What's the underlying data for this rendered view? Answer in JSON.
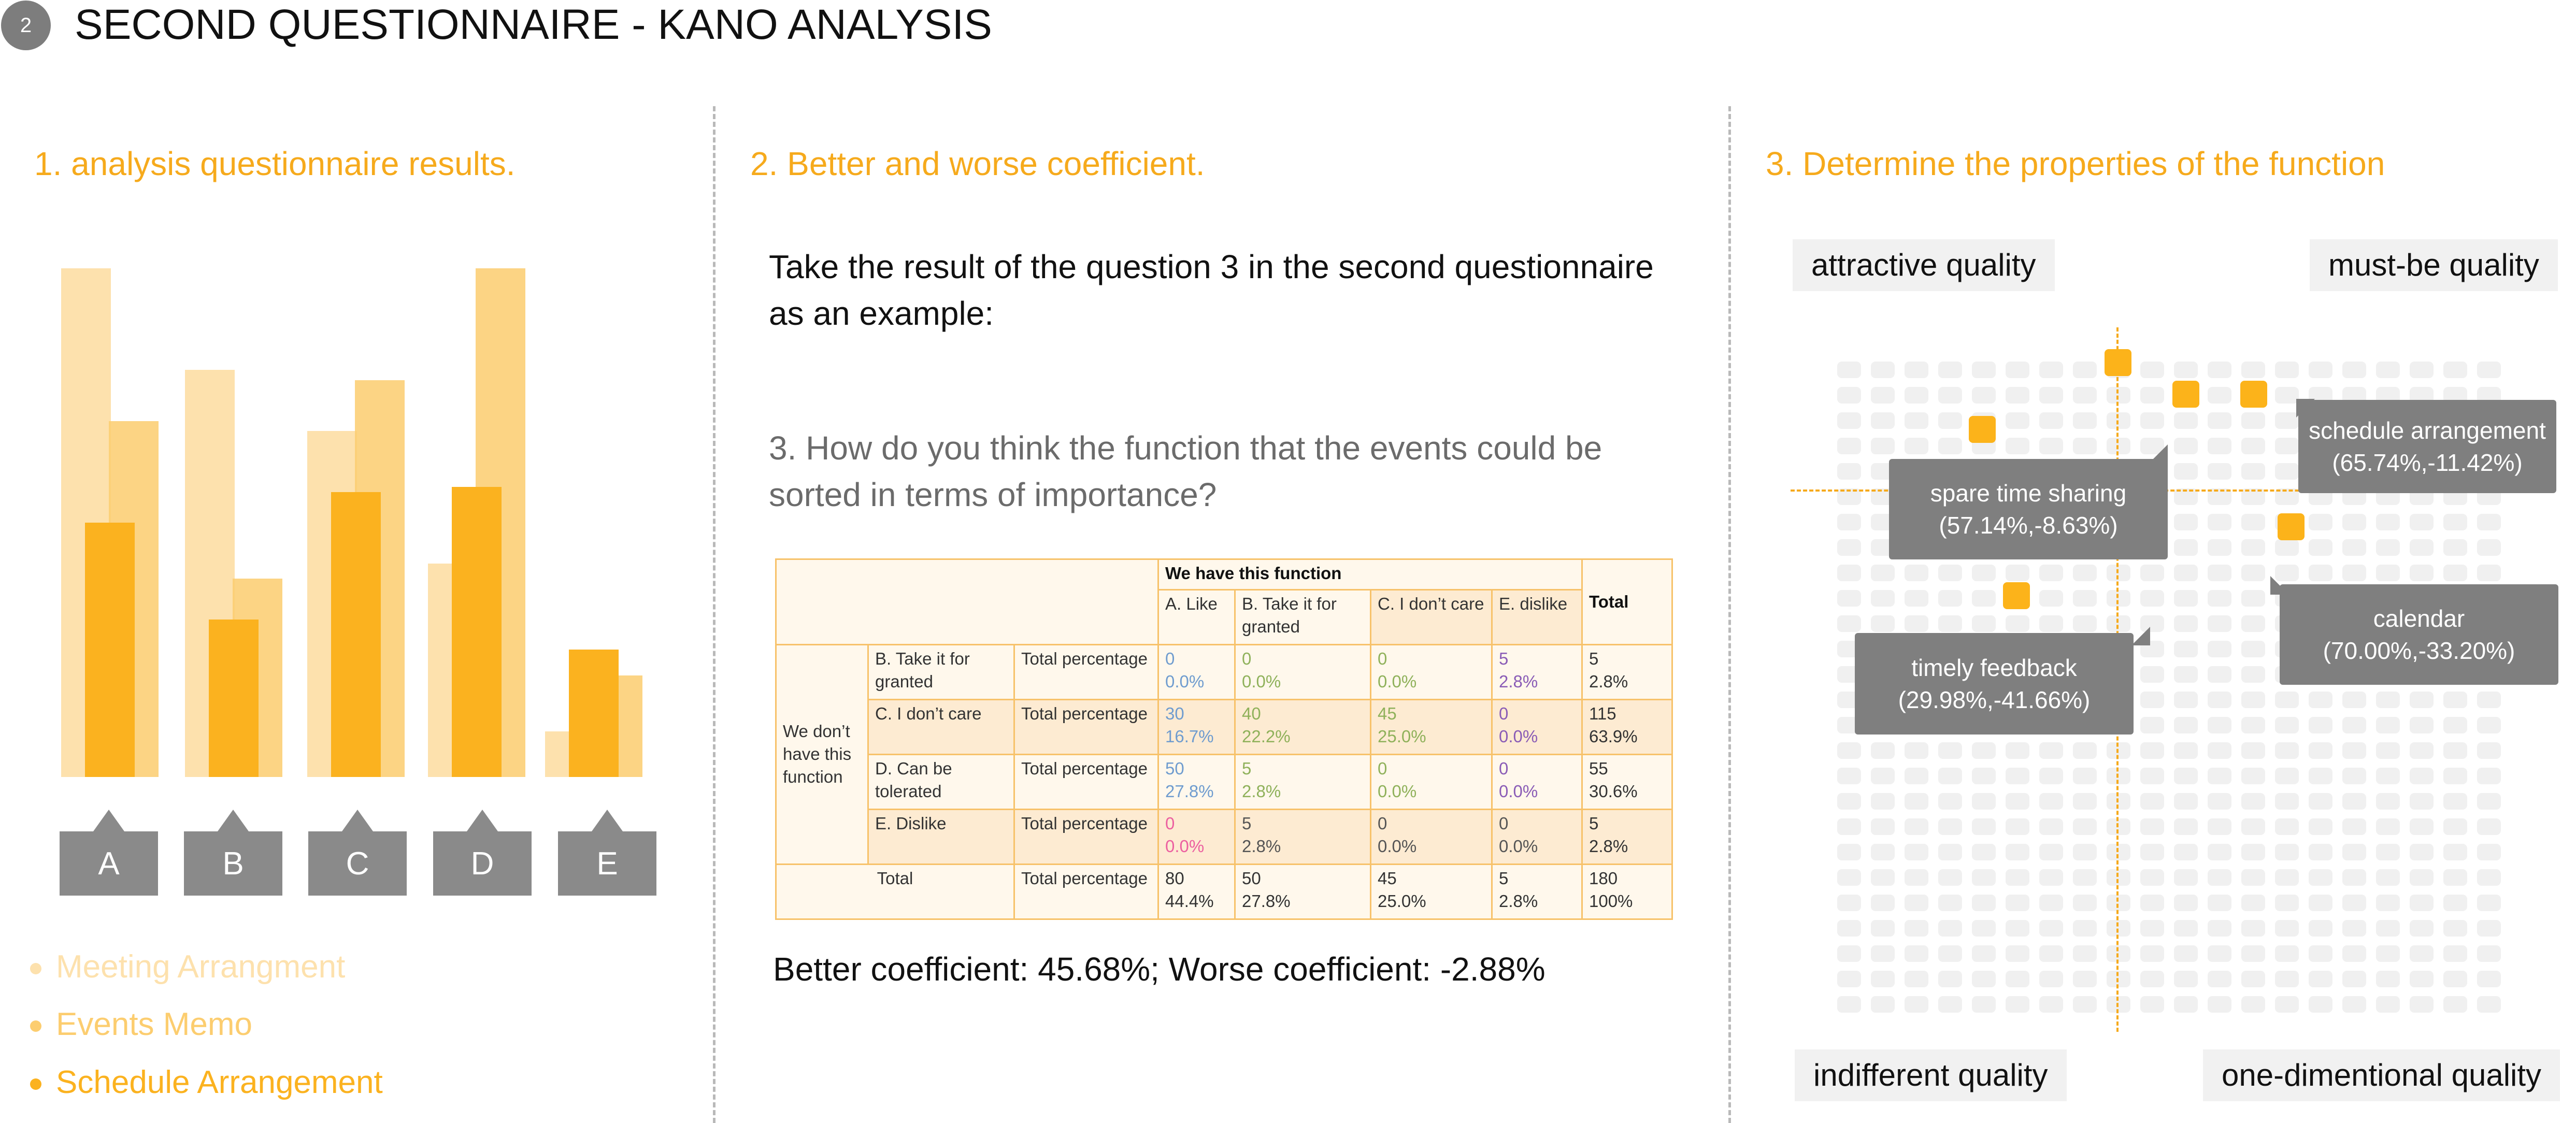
{
  "header": {
    "step": "2",
    "title": "SECOND QUESTIONNAIRE - KANO ANALYSIS"
  },
  "section1": {
    "title": "1. analysis questionnaire results.",
    "categories": [
      "A",
      "B",
      "C",
      "D",
      "E"
    ],
    "legend": [
      {
        "label": "Meeting Arrangment",
        "color": "#fde1ad"
      },
      {
        "label": "Events Memo",
        "color": "#fccd6f"
      },
      {
        "label": "Schedule Arrangement",
        "color": "#fbb21f"
      }
    ]
  },
  "section2": {
    "title": "2. Better and worse coefficient.",
    "intro": "Take the result of the question 3 in the second questionnaire as an example:",
    "question": "3. How do you think the function that the events could be sorted in terms of importance?",
    "table": {
      "have_header": "We have this function",
      "total_header": "Total",
      "col_headers": [
        "A. Like",
        "B. Take it for granted",
        "C. I don’t care",
        "E. dislike"
      ],
      "row_group": "We don’t have this function",
      "rows": [
        {
          "label": "B. Take it for granted",
          "measure": "Total percentage",
          "cells": [
            [
              "0",
              "0.0%"
            ],
            [
              "0",
              "0.0%"
            ],
            [
              "0",
              "0.0%"
            ],
            [
              "5",
              "2.8%"
            ]
          ],
          "total": [
            "5",
            "2.8%"
          ]
        },
        {
          "label": "C. I don’t care",
          "measure": "Total percentage",
          "cells": [
            [
              "30",
              "16.7%"
            ],
            [
              "40",
              "22.2%"
            ],
            [
              "45",
              "25.0%"
            ],
            [
              "0",
              "0.0%"
            ]
          ],
          "total": [
            "115",
            "63.9%"
          ]
        },
        {
          "label": "D. Can be tolerated",
          "measure": "Total percentage",
          "cells": [
            [
              "50",
              "27.8%"
            ],
            [
              "5",
              "2.8%"
            ],
            [
              "0",
              "0.0%"
            ],
            [
              "0",
              "0.0%"
            ]
          ],
          "total": [
            "55",
            "30.6%"
          ]
        },
        {
          "label": "E. Dislike",
          "measure": "Total percentage",
          "cells": [
            [
              "0",
              "0.0%"
            ],
            [
              "5",
              "2.8%"
            ],
            [
              "0",
              "0.0%"
            ],
            [
              "0",
              "0.0%"
            ]
          ],
          "total": [
            "5",
            "2.8%"
          ]
        }
      ],
      "total_row": {
        "label": "Total",
        "measure": "Total percentage",
        "cells": [
          [
            "80",
            "44.4%"
          ],
          [
            "50",
            "27.8%"
          ],
          [
            "45",
            "25.0%"
          ],
          [
            "5",
            "2.8%"
          ]
        ],
        "total": [
          "180",
          "100%"
        ]
      }
    },
    "coefficients": "Better coefficient: 45.68%; Worse coefficient: -2.88%"
  },
  "section3": {
    "title": "3. Determine the properties of the function",
    "quadrants": {
      "top_left": "attractive quality",
      "top_right": "must-be quality",
      "bottom_left": "indifferent quality",
      "bottom_right": "one-dimentional quality"
    },
    "callouts": [
      {
        "name": "schedule arrangement",
        "value": "(65.74%,-11.42%)"
      },
      {
        "name": "spare time sharing",
        "value": "(57.14%,-8.63%)"
      },
      {
        "name": "calendar",
        "value": "(70.00%,-33.20%)"
      },
      {
        "name": "timely feedback",
        "value": "(29.98%,-41.66%)"
      }
    ]
  },
  "chart_data": {
    "type": "bar",
    "categories": [
      "A",
      "B",
      "C",
      "D",
      "E"
    ],
    "series": [
      {
        "name": "Meeting Arrangment",
        "values": [
          100,
          80,
          68,
          42,
          9
        ]
      },
      {
        "name": "Events Memo",
        "values": [
          70,
          39,
          78,
          100,
          20
        ]
      },
      {
        "name": "Schedule Arrangement",
        "values": [
          50,
          31,
          56,
          57,
          25
        ]
      }
    ],
    "title": "",
    "xlabel": "",
    "ylabel": "",
    "ylim": [
      0,
      100
    ],
    "grid": false
  }
}
